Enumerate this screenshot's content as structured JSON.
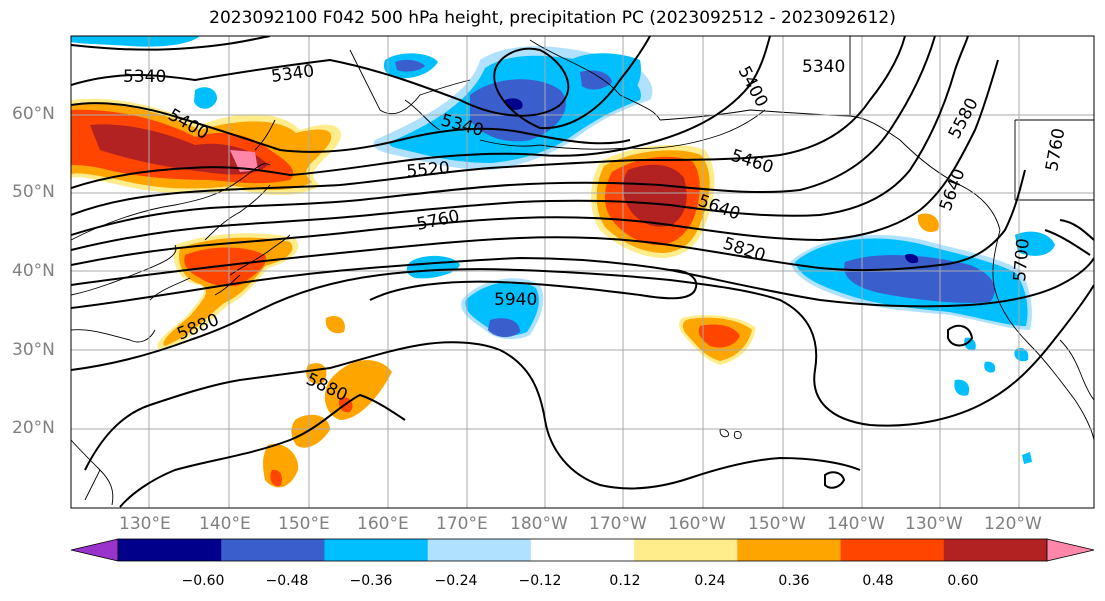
{
  "title": "2023092100 F042 500 hPa height, precipitation PC (2023092512 - 2023092612)",
  "map": {
    "lat_labels": [
      "60°N",
      "50°N",
      "40°N",
      "30°N",
      "20°N"
    ],
    "lon_labels": [
      "130°E",
      "140°E",
      "150°E",
      "160°E",
      "170°E",
      "180°W",
      "170°W",
      "160°W",
      "150°W",
      "140°W",
      "130°W",
      "120°W"
    ],
    "contour_labels": [
      "5340",
      "5340",
      "5400",
      "5340",
      "5400",
      "5340",
      "5460",
      "5520",
      "5580",
      "5760",
      "5640",
      "5760",
      "5820",
      "5700",
      "5640",
      "5940",
      "5880",
      "5880"
    ]
  },
  "colorbar": {
    "colors": [
      "#9933cc",
      "#00008b",
      "#3a5fcd",
      "#00bfff",
      "#b0e2ff",
      "#ffffff",
      "#ffec8b",
      "#ffa500",
      "#ff4500",
      "#b22222",
      "#ff88aa"
    ],
    "ticks": [
      "−0.60",
      "−0.48",
      "−0.36",
      "−0.24",
      "−0.12",
      "0.12",
      "0.24",
      "0.36",
      "0.48",
      "0.60"
    ]
  }
}
